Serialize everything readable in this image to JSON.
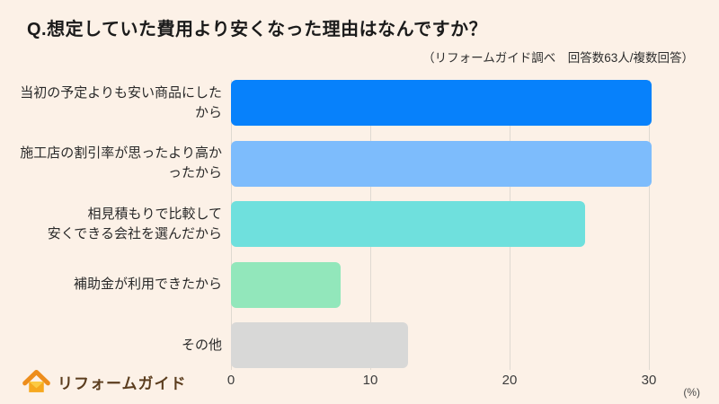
{
  "chart_data": {
    "type": "bar",
    "orientation": "horizontal",
    "title": "Q.想定していた費用より安くなった理由はなんですか？",
    "subtitle": "（リフォームガイド調べ　回答数63人/複数回答）",
    "categories": [
      "当初の予定よりも安い商品にしたから",
      "施工店の割引率が思ったより高かったから",
      "相見積もりで比較して\n安くできる会社を選んだから",
      "補助金が利用できたから",
      "その他"
    ],
    "values": [
      30.2,
      30.2,
      25.4,
      7.9,
      12.7
    ],
    "bar_colors": [
      "#0781FB",
      "#7DBCFC",
      "#6FE0DD",
      "#92E7BB",
      "#D8D8D7"
    ],
    "x_ticks": [
      0,
      10,
      20,
      30
    ],
    "xlim": [
      0,
      33
    ],
    "xlabel": "(%)",
    "ylabel": "",
    "grid": "vertical-lines",
    "legend": "none"
  },
  "footer": {
    "logo_text": "リフォームガイド"
  },
  "colors": {
    "background": "#FCF1E7",
    "gridline": "#DFD9D1",
    "title_text": "#1B1B1B",
    "label_text": "#2A2A2A",
    "logo_text": "#5B3D1E",
    "logo_roof": "#ED8D1C",
    "logo_body": "#F6A81F",
    "logo_flap": "#FBCA43"
  }
}
